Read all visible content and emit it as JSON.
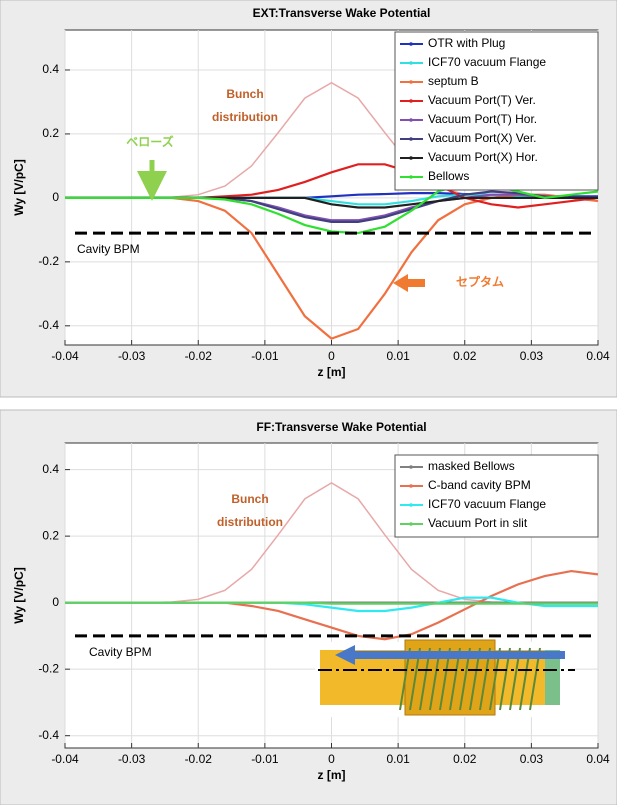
{
  "chart_data": [
    {
      "type": "line",
      "title": "EXT:Transverse Wake Potential",
      "xlabel": "z [m]",
      "ylabel": "Wy [V/pC]",
      "x": [
        -0.04,
        -0.036,
        -0.032,
        -0.028,
        -0.024,
        -0.02,
        -0.016,
        -0.012,
        -0.008,
        -0.004,
        0,
        0.004,
        0.008,
        0.012,
        0.016,
        0.02,
        0.024,
        0.028,
        0.032,
        0.036,
        0.04
      ],
      "xlim": [
        -0.04,
        0.04
      ],
      "xticks": [
        -0.04,
        -0.03,
        -0.02,
        -0.01,
        0,
        0.01,
        0.02,
        0.03,
        0.04
      ],
      "ylim": [
        -0.46,
        0.525
      ],
      "yticks": [
        -0.4,
        -0.2,
        0,
        0.2,
        0.4
      ],
      "grid": true,
      "legend": "top-right",
      "bunch": {
        "color": "#e8a8a8",
        "values": [
          0,
          0,
          0,
          0,
          0.002,
          0.01,
          0.037,
          0.1,
          0.204,
          0.312,
          0.36,
          0.312,
          0.204,
          0.1,
          0.037,
          0.01,
          0.002,
          0,
          0,
          0,
          0
        ]
      },
      "hline": {
        "value": -0.11,
        "label": "Cavity BPM"
      },
      "annotations": [
        {
          "text": "Bunch",
          "color": "#c0602a"
        },
        {
          "text": "distribution",
          "color": "#c0602a"
        },
        {
          "text": "ベローズ",
          "color": "#8fd14f"
        },
        {
          "text": "セプタム",
          "color": "#f07a30"
        }
      ],
      "series": [
        {
          "name": "OTR with Plug",
          "color": "#2030c0",
          "values": [
            0,
            0,
            0,
            0,
            0,
            0,
            0,
            0,
            0,
            0,
            0.005,
            0.01,
            0.012,
            0.015,
            0.015,
            0.012,
            0.01,
            0.008,
            0.006,
            0.005,
            0.005
          ]
        },
        {
          "name": "ICF70 vacuum Flange",
          "color": "#30e0e0",
          "values": [
            0,
            0,
            0,
            0,
            0,
            0,
            0,
            0,
            0,
            0,
            -0.01,
            -0.02,
            -0.02,
            -0.01,
            0.005,
            0.01,
            0.01,
            0.005,
            0,
            0,
            0
          ]
        },
        {
          "name": "septum B",
          "color": "#f07040",
          "values": [
            0,
            0,
            0,
            0,
            0,
            -0.01,
            -0.04,
            -0.11,
            -0.24,
            -0.37,
            -0.44,
            -0.41,
            -0.3,
            -0.17,
            -0.07,
            -0.02,
            0,
            0.01,
            0.01,
            0,
            -0.01
          ]
        },
        {
          "name": "Vacuum Port(T) Ver.",
          "color": "#e02020",
          "values": [
            0,
            0,
            0,
            0,
            0,
            0,
            0.005,
            0.01,
            0.025,
            0.05,
            0.08,
            0.105,
            0.105,
            0.08,
            0.04,
            0,
            -0.02,
            -0.03,
            -0.02,
            -0.01,
            0
          ]
        },
        {
          "name": "Vacuum Port(T) Hor.",
          "color": "#8050b0",
          "values": [
            0,
            0,
            0,
            0,
            0,
            0,
            0,
            -0.01,
            -0.03,
            -0.055,
            -0.07,
            -0.07,
            -0.055,
            -0.03,
            -0.01,
            0,
            0.01,
            0.01,
            0.005,
            0,
            0
          ]
        },
        {
          "name": "Vacuum Port(X) Ver.",
          "color": "#404080",
          "values": [
            0,
            0,
            0,
            0,
            0,
            0,
            0,
            -0.01,
            -0.035,
            -0.06,
            -0.075,
            -0.075,
            -0.06,
            -0.035,
            -0.01,
            0.01,
            0.02,
            0.015,
            0.005,
            0,
            0
          ]
        },
        {
          "name": "Vacuum Port(X) Hor.",
          "color": "#202020",
          "values": [
            0,
            0,
            0,
            0,
            0,
            0,
            0,
            0,
            0,
            0,
            -0.02,
            -0.03,
            -0.03,
            -0.02,
            -0.01,
            0,
            0,
            0,
            0,
            0,
            0
          ]
        },
        {
          "name": "Bellows",
          "color": "#30e030",
          "values": [
            0,
            0,
            0,
            0,
            0,
            0,
            -0.005,
            -0.02,
            -0.05,
            -0.085,
            -0.105,
            -0.11,
            -0.09,
            -0.04,
            0.02,
            0.045,
            0.04,
            0.02,
            0,
            0.01,
            0.02
          ]
        }
      ]
    },
    {
      "type": "line",
      "title": "FF:Transverse Wake Potential",
      "xlabel": "z [m]",
      "ylabel": "Wy [V/pC]",
      "x": [
        -0.04,
        -0.036,
        -0.032,
        -0.028,
        -0.024,
        -0.02,
        -0.016,
        -0.012,
        -0.008,
        -0.004,
        0,
        0.004,
        0.008,
        0.012,
        0.016,
        0.02,
        0.024,
        0.028,
        0.032,
        0.036,
        0.04
      ],
      "xlim": [
        -0.04,
        0.04
      ],
      "xticks": [
        -0.04,
        -0.03,
        -0.02,
        -0.01,
        0,
        0.01,
        0.02,
        0.03,
        0.04
      ],
      "ylim": [
        -0.437,
        0.48
      ],
      "yticks": [
        -0.4,
        -0.2,
        0,
        0.2,
        0.4
      ],
      "grid": true,
      "legend": "top-right",
      "bunch": {
        "color": "#e8a8a8",
        "values": [
          0,
          0,
          0,
          0,
          0.002,
          0.01,
          0.037,
          0.1,
          0.204,
          0.312,
          0.36,
          0.312,
          0.204,
          0.1,
          0.037,
          0.01,
          0.002,
          0,
          0,
          0,
          0
        ]
      },
      "hline": {
        "value": -0.1,
        "label": "Cavity BPM"
      },
      "annotations": [
        {
          "text": "Bunch",
          "color": "#c0602a"
        },
        {
          "text": "distribution",
          "color": "#c0602a"
        }
      ],
      "series": [
        {
          "name": "masked Bellows",
          "color": "#808080",
          "values": [
            0,
            0,
            0,
            0,
            0,
            0,
            0,
            0,
            0,
            0,
            0,
            0,
            0,
            0,
            0,
            0,
            0,
            0,
            0,
            0,
            0
          ]
        },
        {
          "name": "C-band cavity BPM",
          "color": "#e87050",
          "values": [
            0,
            0,
            0,
            0,
            0,
            0,
            0,
            -0.01,
            -0.025,
            -0.05,
            -0.075,
            -0.1,
            -0.11,
            -0.095,
            -0.06,
            -0.02,
            0.02,
            0.055,
            0.08,
            0.095,
            0.085
          ]
        },
        {
          "name": "ICF70 vacuum Flange",
          "color": "#30e8f0",
          "values": [
            0,
            0,
            0,
            0,
            0,
            0,
            0,
            0,
            0,
            -0.005,
            -0.015,
            -0.025,
            -0.025,
            -0.015,
            0,
            0.015,
            0.015,
            0,
            -0.01,
            -0.01,
            -0.01
          ]
        },
        {
          "name": "Vacuum Port in slit",
          "color": "#60d060",
          "values": [
            0,
            0,
            0,
            0,
            0,
            0,
            0,
            0,
            0,
            0,
            -0.003,
            -0.003,
            -0.003,
            -0.003,
            -0.003,
            -0.003,
            -0.003,
            -0.003,
            -0.003,
            -0.003,
            -0.003
          ]
        }
      ]
    }
  ]
}
